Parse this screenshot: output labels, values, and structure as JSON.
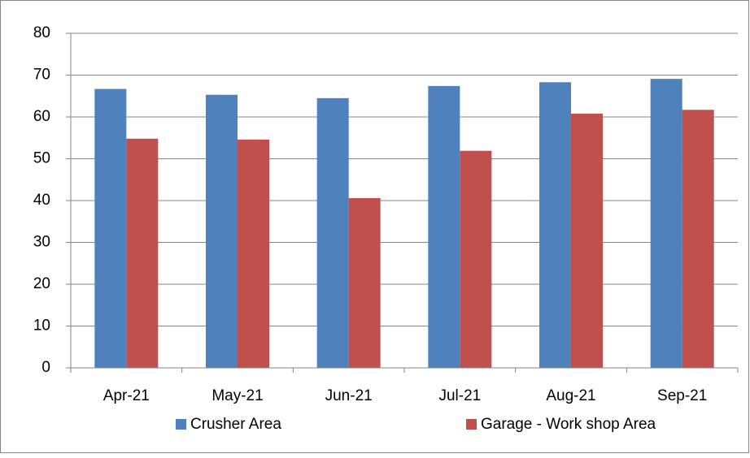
{
  "chart_data": {
    "type": "bar",
    "categories": [
      "Apr-21",
      "May-21",
      "Jun-21",
      "Jul-21",
      "Aug-21",
      "Sep-21"
    ],
    "series": [
      {
        "name": "Crusher Area",
        "color": "#4f81bd",
        "values": [
          66.7,
          65.3,
          64.5,
          67.4,
          68.3,
          69.1
        ]
      },
      {
        "name": "Garage - Work shop Area",
        "color": "#c0504d",
        "values": [
          54.8,
          54.6,
          40.6,
          51.9,
          60.8,
          61.7
        ]
      }
    ],
    "ylim": [
      0,
      80
    ],
    "yticks": [
      0,
      10,
      20,
      30,
      40,
      50,
      60,
      70,
      80
    ],
    "grid": true,
    "legend": "bottom"
  }
}
